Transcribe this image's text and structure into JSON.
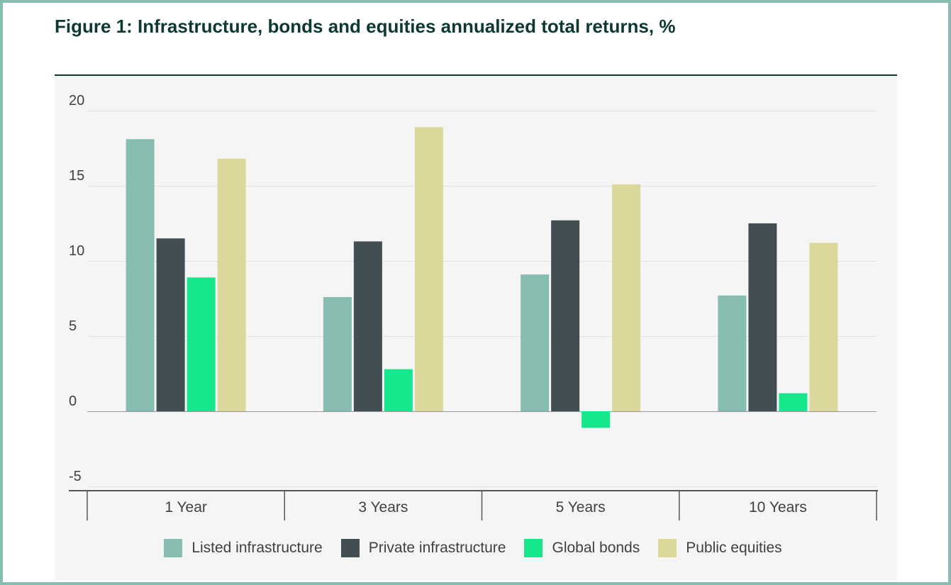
{
  "title": "Figure 1: Infrastructure, bonds and equities annualized total returns, %",
  "chart_data": {
    "type": "bar",
    "categories": [
      "1 Year",
      "3 Years",
      "5 Years",
      "10 Years"
    ],
    "series": [
      {
        "name": "Listed infrastructure",
        "color": "#86bdb0",
        "values": [
          18.1,
          7.6,
          9.1,
          7.7
        ]
      },
      {
        "name": "Private infrastructure",
        "color": "#414f53",
        "values": [
          11.5,
          11.3,
          12.7,
          12.5
        ]
      },
      {
        "name": "Global bonds",
        "color": "#16e68c",
        "values": [
          8.9,
          2.8,
          -1.1,
          1.2
        ]
      },
      {
        "name": "Public equities",
        "color": "#dcd89b",
        "values": [
          16.8,
          18.9,
          15.1,
          11.2
        ]
      }
    ],
    "yticks": [
      20,
      15,
      10,
      5,
      0,
      -5
    ],
    "ylim": [
      -5.3,
      20
    ],
    "grid": true,
    "legend": "bottom"
  }
}
